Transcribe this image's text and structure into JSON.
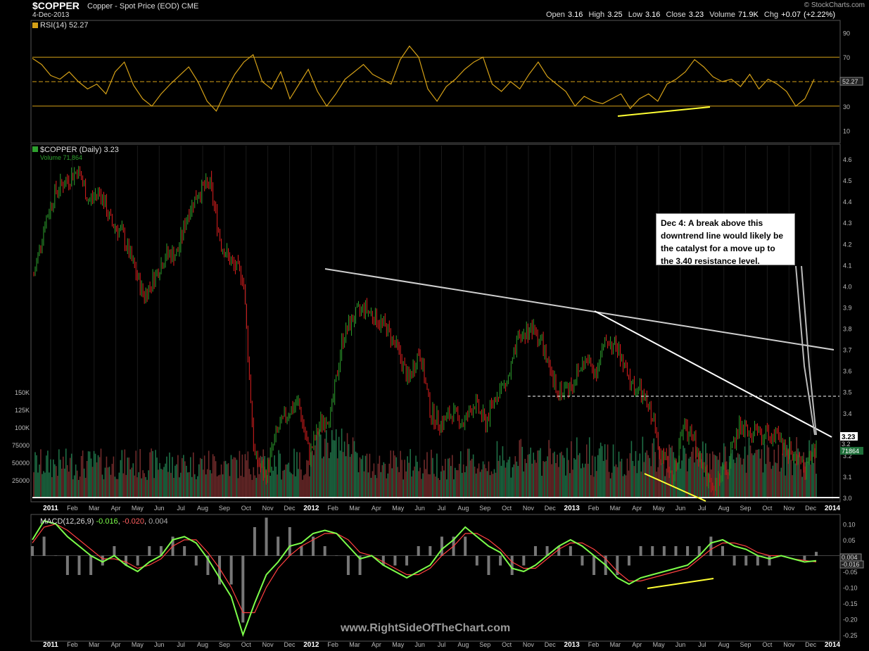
{
  "header": {
    "symbol": "$COPPER",
    "description": "Copper - Spot Price (EOD)  CME",
    "date": "4-Dec-2013",
    "copyright": "© StockCharts.com",
    "quote": {
      "open_label": "Open",
      "open": "3.16",
      "high_label": "High",
      "high": "3.25",
      "low_label": "Low",
      "low": "3.16",
      "close_label": "Close",
      "close": "3.23",
      "volume_label": "Volume",
      "volume": "71.9K",
      "chg_label": "Chg",
      "chg": "+0.07 (+2.22%)"
    }
  },
  "panels": {
    "rsi_label": "RSI(14) 52.27",
    "rsi_value_tag": "52.27",
    "price_label": "$COPPER (Daily) 3.23",
    "volume_label": "Volume 71,864",
    "price_tag": "3.23",
    "price_tag2": "3.2",
    "volume_tag": "71864",
    "macd_label_name": "MACD(12,26,9)",
    "macd_val1": "-0.016",
    "macd_val2": "-0.020",
    "macd_val3": "0.004",
    "macd_tag1": "0.004",
    "macd_tag2": "-0.016"
  },
  "annotation": {
    "text": "Dec 4: A break above this downtrend line would likely be the catalyst for a move up to the 3.40 resistance level."
  },
  "watermark": "www.RightSideOfTheChart.com",
  "colors": {
    "up_candle": "#2ea02e",
    "down_candle": "#e02020",
    "rsi_line": "#d4a017",
    "macd_line": "#7dff4a",
    "signal_line": "#ff4040",
    "trendline": "#ffffff",
    "divergence_line": "#ffff33"
  },
  "chart_data": [
    {
      "type": "line",
      "name": "RSI(14)",
      "ylim": [
        0,
        100
      ],
      "y_ticks": [
        10,
        30,
        50,
        70,
        90
      ],
      "x_labels": [
        "2011",
        "Feb",
        "Mar",
        "Apr",
        "May",
        "Jun",
        "Jul",
        "Aug",
        "Sep",
        "Oct",
        "Nov",
        "Dec",
        "2012",
        "Feb",
        "Mar",
        "Apr",
        "May",
        "Jun",
        "Jul",
        "Aug",
        "Sep",
        "Oct",
        "Nov",
        "Dec",
        "2013",
        "Feb",
        "Mar",
        "Apr",
        "May",
        "Jun",
        "Jul",
        "Aug",
        "Sep",
        "Oct",
        "Nov",
        "Dec",
        "2014"
      ],
      "values": [
        69,
        64,
        55,
        52,
        58,
        50,
        44,
        48,
        40,
        58,
        66,
        47,
        36,
        30,
        40,
        48,
        55,
        62,
        50,
        34,
        26,
        42,
        56,
        66,
        72,
        50,
        44,
        58,
        36,
        48,
        60,
        42,
        30,
        40,
        52,
        58,
        64,
        56,
        52,
        48,
        68,
        79,
        70,
        44,
        34,
        46,
        52,
        60,
        66,
        70,
        48,
        42,
        50,
        44,
        56,
        66,
        54,
        48,
        42,
        30,
        38,
        34,
        32,
        36,
        40,
        28,
        36,
        40,
        34,
        48,
        52,
        58,
        68,
        62,
        54,
        50,
        52,
        46,
        56,
        44,
        52,
        48,
        42,
        30,
        36,
        52
      ],
      "reference_lines": [
        30,
        50,
        70
      ],
      "last": 52.27
    },
    {
      "type": "line",
      "name": "$COPPER (Daily)",
      "ylim": [
        2.95,
        4.62
      ],
      "y_ticks": [
        3.0,
        3.1,
        3.2,
        3.3,
        3.4,
        3.5,
        3.6,
        3.7,
        3.8,
        3.9,
        4.0,
        4.1,
        4.2,
        4.3,
        4.4,
        4.5,
        4.6
      ],
      "x_labels": [
        "2011",
        "Feb",
        "Mar",
        "Apr",
        "May",
        "Jun",
        "Jul",
        "Aug",
        "Sep",
        "Oct",
        "Nov",
        "Dec",
        "2012",
        "Feb",
        "Mar",
        "Apr",
        "May",
        "Jun",
        "Jul",
        "Aug",
        "Sep",
        "Oct",
        "Nov",
        "Dec",
        "2013",
        "Feb",
        "Mar",
        "Apr",
        "May",
        "Jun",
        "Jul",
        "Aug",
        "Sep",
        "Oct",
        "Nov",
        "Dec",
        "2014"
      ],
      "close_by_month_half": [
        4.05,
        4.3,
        4.45,
        4.5,
        4.55,
        4.4,
        4.45,
        4.3,
        4.25,
        4.1,
        3.95,
        4.05,
        4.15,
        4.15,
        4.35,
        4.45,
        4.48,
        4.2,
        4.1,
        4.05,
        3.2,
        3.1,
        3.3,
        3.4,
        3.45,
        3.2,
        3.35,
        3.4,
        3.75,
        3.85,
        3.9,
        3.85,
        3.8,
        3.7,
        3.55,
        3.7,
        3.4,
        3.35,
        3.4,
        3.35,
        3.45,
        3.35,
        3.5,
        3.55,
        3.75,
        3.8,
        3.75,
        3.55,
        3.5,
        3.55,
        3.65,
        3.6,
        3.75,
        3.7,
        3.55,
        3.5,
        3.4,
        3.2,
        3.1,
        3.35,
        3.25,
        3.1,
        3.05,
        3.15,
        3.35,
        3.3,
        3.3,
        3.3,
        3.25,
        3.2,
        3.15,
        3.23
      ],
      "resistance_level": 3.4,
      "last": 3.23
    },
    {
      "type": "bar",
      "name": "Volume",
      "y_ticks": [
        25000,
        50000,
        75000,
        100000,
        125000,
        150000
      ],
      "y_tick_labels": [
        "25000",
        "50000",
        "75000",
        "100K",
        "125K",
        "150K"
      ],
      "last": 71864
    },
    {
      "type": "line",
      "name": "MACD(12,26,9)",
      "ylim": [
        -0.27,
        0.13
      ],
      "y_ticks": [
        0.1,
        0.05,
        0.0,
        -0.05,
        -0.1,
        -0.15,
        -0.2,
        -0.25
      ],
      "y_tick_labels": [
        "0.10",
        "0.05",
        "0.00",
        "-0.05",
        "-0.10",
        "-0.15",
        "-0.20",
        "-0.25"
      ],
      "x_labels": [
        "2011",
        "Feb",
        "Mar",
        "Apr",
        "May",
        "Jun",
        "Jul",
        "Aug",
        "Sep",
        "Oct",
        "Nov",
        "Dec",
        "2012",
        "Feb",
        "Mar",
        "Apr",
        "May",
        "Jun",
        "Jul",
        "Aug",
        "Sep",
        "Oct",
        "Nov",
        "Dec",
        "2013",
        "Feb",
        "Mar",
        "Apr",
        "May",
        "Jun",
        "Jul",
        "Aug",
        "Sep",
        "Oct",
        "Nov",
        "Dec",
        "2014"
      ],
      "macd": [
        0.05,
        0.11,
        0.1,
        0.06,
        0.03,
        0.0,
        -0.02,
        0.0,
        -0.03,
        -0.05,
        -0.02,
        0.0,
        0.05,
        0.06,
        0.04,
        -0.01,
        -0.07,
        -0.13,
        -0.25,
        -0.15,
        -0.06,
        -0.02,
        0.03,
        0.04,
        0.07,
        0.08,
        0.07,
        0.03,
        -0.01,
        0.0,
        -0.03,
        -0.05,
        -0.07,
        -0.05,
        -0.03,
        0.02,
        0.05,
        0.09,
        0.06,
        0.03,
        0.01,
        -0.04,
        -0.05,
        -0.03,
        0.0,
        0.03,
        0.05,
        0.03,
        0.0,
        -0.03,
        -0.07,
        -0.09,
        -0.07,
        -0.06,
        -0.05,
        -0.04,
        -0.03,
        0.0,
        0.04,
        0.05,
        0.03,
        0.02,
        0.0,
        -0.01,
        0.0,
        -0.01,
        -0.02,
        -0.016
      ],
      "signal": [
        0.04,
        0.09,
        0.1,
        0.08,
        0.05,
        0.02,
        -0.01,
        -0.01,
        -0.02,
        -0.04,
        -0.03,
        -0.01,
        0.03,
        0.05,
        0.05,
        0.01,
        -0.04,
        -0.1,
        -0.18,
        -0.18,
        -0.1,
        -0.04,
        0.0,
        0.03,
        0.05,
        0.07,
        0.07,
        0.05,
        0.01,
        0.0,
        -0.02,
        -0.04,
        -0.06,
        -0.06,
        -0.04,
        0.0,
        0.03,
        0.07,
        0.07,
        0.05,
        0.02,
        -0.02,
        -0.04,
        -0.04,
        -0.01,
        0.02,
        0.04,
        0.04,
        0.02,
        -0.01,
        -0.05,
        -0.08,
        -0.08,
        -0.07,
        -0.06,
        -0.05,
        -0.04,
        -0.01,
        0.02,
        0.04,
        0.04,
        0.03,
        0.01,
        0.0,
        0.0,
        -0.01,
        -0.015,
        -0.02
      ],
      "last_macd": -0.016,
      "last_signal": -0.02,
      "last_histogram": 0.004
    }
  ]
}
